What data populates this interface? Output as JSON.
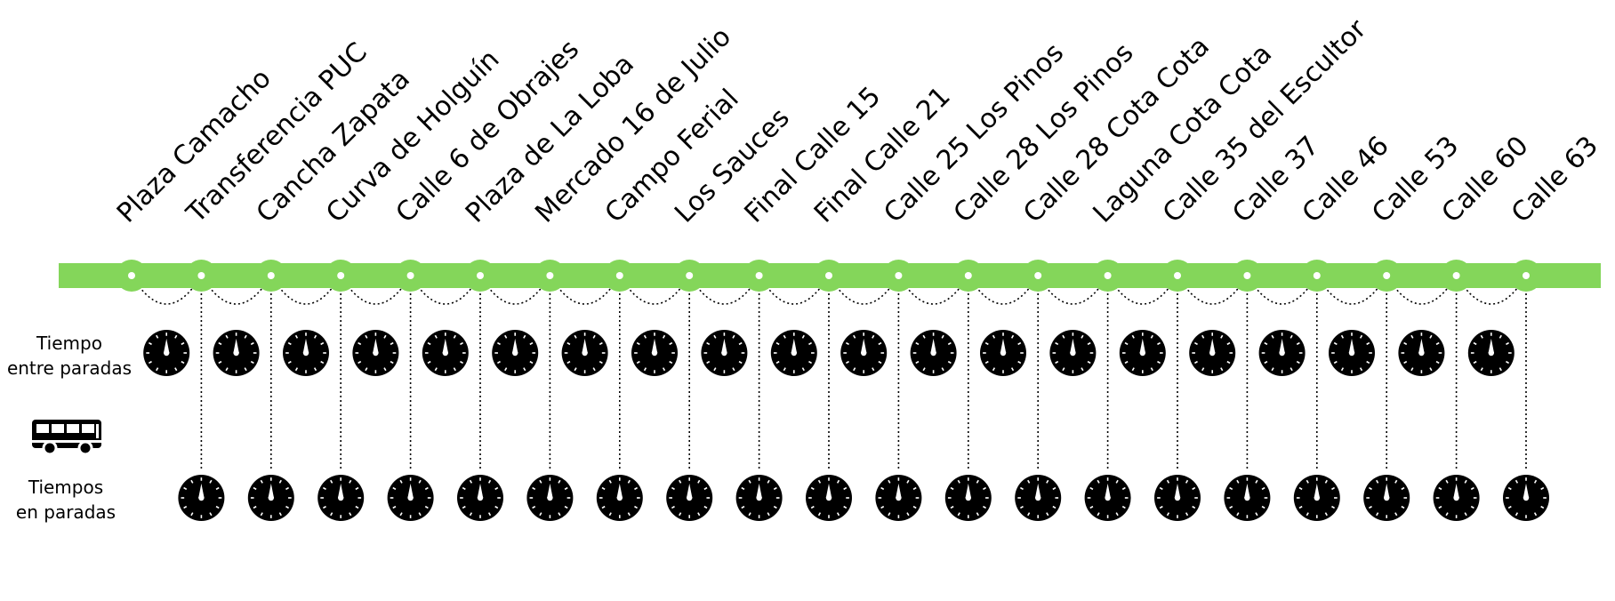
{
  "stops": [
    "Plaza Camacho",
    "Transferencia PUC",
    "Cancha Zapata",
    "Curva de Holguín",
    "Calle 6 de Obrajes",
    "Plaza de La Loba",
    "Mercado 16 de Julio",
    "Campo Ferial",
    "Los Sauces",
    "Final Calle 15",
    "Final Calle 21",
    "Calle 25 Los Pinos",
    "Calle 28 Los Pinos",
    "Calle 28 Cota Cota",
    "Laguna Cota Cota",
    "Calle 35 del Escultor",
    "Calle 37",
    "Calle 46",
    "Calle 53",
    "Calle 60",
    "Calle 63"
  ],
  "labels": {
    "time_between_line1": "Tiempo",
    "time_between_line2": "entre paradas",
    "time_at_line1": "Tiempos",
    "time_at_line2": "en paradas"
  },
  "colors": {
    "route": "#84d65a",
    "ink": "#000000",
    "background": "#ffffff"
  },
  "icons": {
    "vehicle": "bus-icon",
    "timer": "clock-icon"
  }
}
